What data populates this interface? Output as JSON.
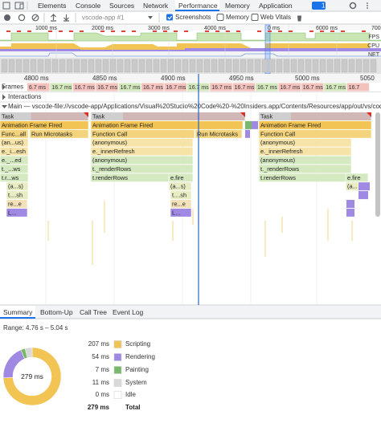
{
  "tabs": [
    "Elements",
    "Console",
    "Sources",
    "Network",
    "Performance",
    "Memory",
    "Application"
  ],
  "badge": "1",
  "toolbar": {
    "target": "vscode-app #1",
    "screenshots": "Screenshots",
    "memory": "Memory",
    "web_vitals": "Web Vitals"
  },
  "overview": {
    "ticks": [
      "1000 ms",
      "2000 ms",
      "3000 ms",
      "4000 ms",
      "0 ms",
      "6000 ms",
      "700"
    ],
    "tracks": [
      "FPS",
      "CPU",
      "NET"
    ]
  },
  "timeline": {
    "ticks": [
      "4800 ms",
      "4850 ms",
      "4900 ms",
      "4950 ms",
      "5000 ms",
      "5050"
    ],
    "frames_label": "Frames",
    "frames": [
      "6.7 ms",
      "16.7 ms",
      "16.7 ms",
      "16.7 ms",
      "16.7 ms",
      "16.7 ms",
      "16.7 ms",
      "16.7 ms",
      "16.7 ms",
      "16.7 ms",
      "16.7 ms",
      "16.7 ms",
      "16.7 ms",
      "16.7 ms",
      "16.7"
    ],
    "interactions": "Interactions",
    "main": "Main — vscode-file://vscode-app/Applications/Visual%20Studio%20Code%20-%20Insiders.app/Contents/Resources/app/out/vs/code/e"
  },
  "flame": [
    [
      "Task",
      "Task",
      "Task"
    ],
    [
      "Animation Frame Fired",
      "Animation Frame Fired",
      "Animation Frame Fired"
    ],
    [
      "Func...all",
      "Run Microtasks",
      "Function Call",
      "Run Microtasks",
      "Function Call"
    ],
    [
      "(an...us)",
      "(anonymous)",
      "(anonymous)"
    ],
    [
      "e._i...esh",
      "e._innerRefresh",
      "e._innerRefresh"
    ],
    [
      "e._...ed",
      "(anonymous)",
      "(anonymous)"
    ],
    [
      "t._...ws",
      "t._renderRows",
      "t._renderRows"
    ],
    [
      "t.r...ws",
      "t.renderRows",
      "e.fire",
      "t.renderRows",
      "e.fire"
    ],
    [
      "(a...s)",
      "(a...s)",
      "(a...s)"
    ],
    [
      "t....sh",
      "t....sh"
    ],
    [
      "re...e",
      "re...e"
    ],
    [
      "L...",
      "L..."
    ]
  ],
  "details": {
    "tabs": [
      "Summary",
      "Bottom-Up",
      "Call Tree",
      "Event Log"
    ],
    "range": "Range: 4.76 s – 5.04 s",
    "rows": [
      {
        "value": 207,
        "label": "207 ms",
        "name": "Scripting",
        "color": "#f1c453"
      },
      {
        "value": 54,
        "label": "54 ms",
        "name": "Rendering",
        "color": "#9f89e3"
      },
      {
        "value": 7,
        "label": "7 ms",
        "name": "Painting",
        "color": "#7ab86c"
      },
      {
        "value": 11,
        "label": "11 ms",
        "name": "System",
        "color": "#d9d9d9"
      },
      {
        "value": 0,
        "label": "0 ms",
        "name": "Idle",
        "color": "#ffffff"
      }
    ],
    "total": {
      "value": 279,
      "label": "279 ms",
      "name": "Total"
    }
  }
}
